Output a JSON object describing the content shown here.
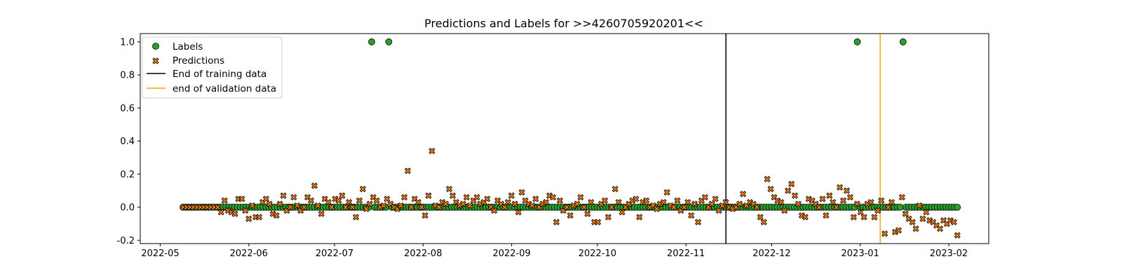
{
  "chart_data": {
    "type": "scatter",
    "title": "Predictions and Labels for >>4260705920201<<",
    "xlabel": "",
    "ylabel": "",
    "x_axis_type": "date",
    "xlim": [
      "2022-04-24",
      "2023-02-15"
    ],
    "ylim": [
      -0.22,
      1.05
    ],
    "x_ticks": [
      "2022-05",
      "2022-06",
      "2022-07",
      "2022-08",
      "2022-09",
      "2022-10",
      "2022-11",
      "2022-12",
      "2023-01",
      "2023-02"
    ],
    "y_ticks": [
      "-0.2",
      "0.0",
      "0.2",
      "0.4",
      "0.6",
      "0.8",
      "1.0"
    ],
    "y_tick_values": [
      -0.2,
      0.0,
      0.2,
      0.4,
      0.6,
      0.8,
      1.0
    ],
    "grid": false,
    "legend_position": "upper-left",
    "legend": [
      "Labels",
      "Predictions",
      "End of training data",
      "end of validation data"
    ],
    "labels": {
      "name": "Labels",
      "color": "#2ca02c",
      "marker": "circle",
      "start_date": "2022-05-09",
      "end_date": "2023-02-04",
      "default_value": 0.0,
      "exceptions": [
        {
          "x": "2022-07-14",
          "y": 1.0
        },
        {
          "x": "2022-07-20",
          "y": 1.0
        },
        {
          "x": "2022-12-31",
          "y": 1.0
        },
        {
          "x": "2023-01-16",
          "y": 1.0
        }
      ]
    },
    "predictions": {
      "name": "Predictions",
      "color": "#ff7f0e",
      "marker": "x",
      "x_start": "2022-05-09",
      "x_end": "2023-02-04",
      "values": [
        0.0,
        0.0,
        0.0,
        0.0,
        0.0,
        0.0,
        0.0,
        0.0,
        0.0,
        0.0,
        0.0,
        -0.03,
        0.04,
        -0.02,
        -0.03,
        -0.04,
        0.05,
        0.05,
        -0.02,
        -0.07,
        0.01,
        -0.06,
        -0.06,
        0.03,
        0.05,
        0.02,
        -0.04,
        -0.05,
        0.02,
        0.07,
        -0.02,
        0.0,
        0.06,
        0.01,
        -0.02,
        0.0,
        0.06,
        0.04,
        0.13,
        0.01,
        -0.04,
        0.05,
        0.03,
        0.0,
        0.05,
        0.04,
        0.07,
        0.0,
        0.03,
        0.0,
        -0.06,
        0.04,
        0.11,
        -0.01,
        0.02,
        0.06,
        0.04,
        0.0,
        0.01,
        0.05,
        0.02,
        0.0,
        -0.01,
        0.01,
        0.06,
        0.22,
        0.0,
        0.05,
        0.03,
        0.0,
        -0.05,
        0.07,
        0.34,
        0.01,
        0.0,
        0.03,
        0.02,
        0.11,
        0.07,
        0.03,
        0.01,
        0.02,
        0.06,
        0.01,
        0.04,
        0.06,
        0.02,
        0.03,
        0.05,
        0.0,
        -0.02,
        0.04,
        0.02,
        0.0,
        0.03,
        0.07,
        0.02,
        -0.03,
        0.09,
        0.04,
        0.02,
        0.01,
        0.05,
        0.0,
        0.02,
        0.03,
        0.07,
        0.06,
        -0.09,
        0.04,
        -0.02,
        0.0,
        -0.05,
        0.01,
        0.02,
        0.06,
        0.0,
        -0.04,
        0.03,
        -0.09,
        -0.09,
        0.02,
        0.04,
        -0.06,
        0.0,
        0.11,
        0.03,
        -0.03,
        0.0,
        0.02,
        0.04,
        0.05,
        -0.06,
        0.03,
        0.04,
        0.0,
        0.01,
        -0.01,
        0.02,
        0.03,
        0.09,
        0.01,
        0.0,
        0.04,
        -0.02,
        0.0,
        0.03,
        -0.05,
        0.02,
        -0.09,
        0.04,
        0.06,
        0.0,
        0.02,
        0.05,
        -0.02,
        0.01,
        0.03,
        0.0,
        -0.01,
        0.0,
        0.02,
        0.08,
        0.01,
        0.03,
        0.02,
        0.0,
        -0.06,
        -0.09,
        0.17,
        0.11,
        0.06,
        0.04,
        0.03,
        -0.02,
        0.1,
        0.14,
        0.07,
        0.02,
        -0.05,
        -0.06,
        0.05,
        0.04,
        0.02,
        0.0,
        0.05,
        -0.05,
        0.07,
        0.03,
        0.0,
        0.12,
        0.04,
        0.1,
        0.06,
        -0.06,
        0.02,
        -0.03,
        -0.06,
        0.02,
        0.03,
        -0.06,
        -0.02,
        0.04,
        -0.16,
        0.0,
        0.03,
        -0.15,
        -0.14,
        0.06,
        -0.04,
        -0.07,
        -0.09,
        -0.13,
        0.01,
        -0.07,
        -0.03,
        -0.08,
        -0.09,
        -0.11,
        -0.13,
        -0.08,
        -0.1,
        -0.08,
        -0.09,
        -0.17
      ]
    },
    "vlines": [
      {
        "name": "End of training data",
        "x": "2022-11-15",
        "color": "#000000"
      },
      {
        "name": "end of validation data",
        "x": "2023-01-08",
        "color": "#ffa500"
      }
    ]
  }
}
